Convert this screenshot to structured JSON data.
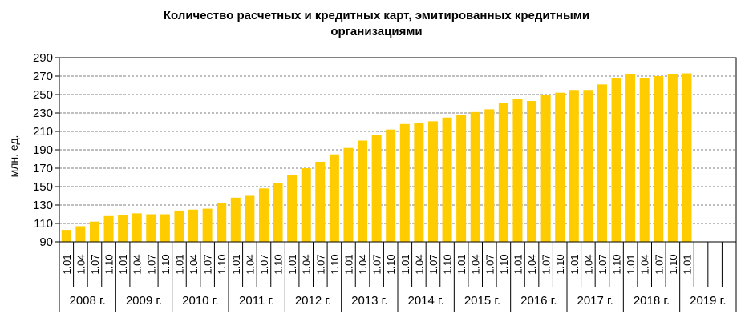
{
  "chart_data": {
    "type": "bar",
    "title_lines": [
      "Количество расчетных и кредитных карт, эмитированных кредитными",
      "организациями"
    ],
    "ylabel": "млн. ед.",
    "ylim": [
      90,
      290
    ],
    "yticks": [
      90,
      110,
      130,
      150,
      170,
      190,
      210,
      230,
      250,
      270,
      290
    ],
    "grid": true,
    "bar_color": "#FFCC00",
    "categories": [
      "1.01",
      "1.04",
      "1.07",
      "1.10",
      "1.01",
      "1.04",
      "1.07",
      "1.10",
      "1.01",
      "1.04",
      "1.07",
      "1.10",
      "1.01",
      "1.04",
      "1.07",
      "1.10",
      "1.01",
      "1.04",
      "1.07",
      "1.10",
      "1.01",
      "1.04",
      "1.07",
      "1.10",
      "1.01",
      "1.04",
      "1.07",
      "1.10",
      "1.01",
      "1.04",
      "1.07",
      "1.10",
      "1.01",
      "1.04",
      "1.07",
      "1.10",
      "1.01",
      "1.04",
      "1.07",
      "1.10",
      "1.01",
      "1.04",
      "1.07",
      "1.10",
      "1.01"
    ],
    "values": [
      103,
      107,
      112,
      118,
      119,
      121,
      120,
      120,
      124,
      125,
      126,
      132,
      138,
      140,
      148,
      154,
      163,
      170,
      177,
      185,
      192,
      200,
      206,
      212,
      218,
      219,
      221,
      225,
      228,
      231,
      234,
      241,
      245,
      243,
      250,
      252,
      255,
      255,
      261,
      268,
      272,
      268,
      270,
      272,
      273
    ],
    "years": [
      {
        "label": "2008 г.",
        "count": 4
      },
      {
        "label": "2009 г.",
        "count": 4
      },
      {
        "label": "2010 г.",
        "count": 4
      },
      {
        "label": "2011 г.",
        "count": 4
      },
      {
        "label": "2012 г.",
        "count": 4
      },
      {
        "label": "2013 г.",
        "count": 4
      },
      {
        "label": "2014 г.",
        "count": 4
      },
      {
        "label": "2015 г.",
        "count": 4
      },
      {
        "label": "2016 г.",
        "count": 4
      },
      {
        "label": "2017 г.",
        "count": 4
      },
      {
        "label": "2018 г.",
        "count": 4
      },
      {
        "label": "2019 г.",
        "count": 1
      }
    ]
  }
}
